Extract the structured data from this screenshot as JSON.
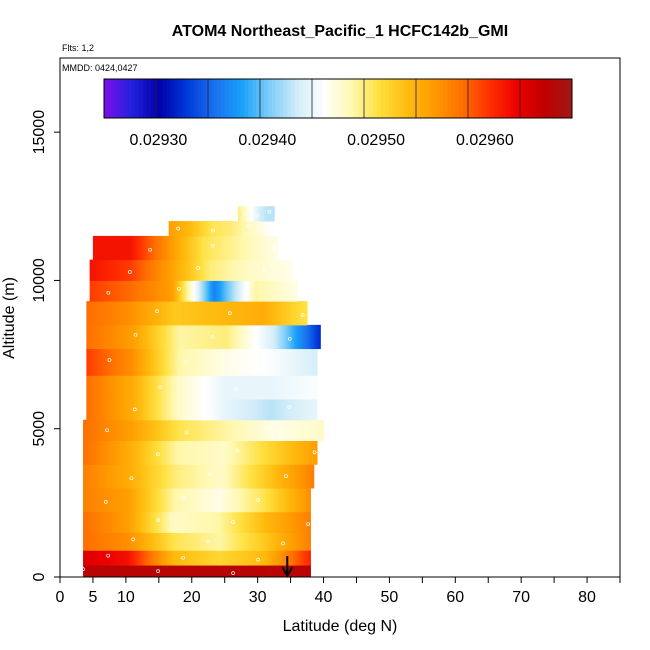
{
  "chart_data": {
    "type": "heatmap",
    "title": "ATOM4 Northeast_Pacific_1 HCFC142b_GMI",
    "flights_label": "Flts: 1,2",
    "dates_label": "MMDD: 0424,0427",
    "xlabel": "Latitude (deg N)",
    "ylabel": "Altitude (m)",
    "xlim": [
      0,
      85
    ],
    "ylim": [
      0,
      17500
    ],
    "xticks": [
      0,
      5,
      10,
      20,
      30,
      40,
      50,
      60,
      70,
      80
    ],
    "yticks": [
      0,
      5000,
      10000,
      15000
    ],
    "colorbar": {
      "min": 0.02925,
      "max": 0.02968,
      "ticks": [
        0.0293,
        0.0294,
        0.0295,
        0.0296
      ],
      "tick_labels": [
        "0.02930",
        "0.02940",
        "0.02950",
        "0.02960"
      ],
      "colors": [
        "#7d0fe8",
        "#2222dd",
        "#0000a8",
        "#0038d8",
        "#1a70f0",
        "#18a0f8",
        "#7cccf8",
        "#d0ecf8",
        "#ffffff",
        "#fff8b0",
        "#ffe040",
        "#ffbc10",
        "#ff9a00",
        "#ff7000",
        "#ff3000",
        "#ee0000",
        "#c00000",
        "#a01818"
      ]
    },
    "surface_arrow_latitude": 34.5,
    "rows": [
      {
        "alt_min": 0,
        "alt_max": 400,
        "lat_min": 3.5,
        "lat_max": 38,
        "values": [
          0.02966,
          0.02966,
          0.02966,
          0.02966,
          0.02966,
          0.02966
        ]
      },
      {
        "alt_min": 400,
        "alt_max": 900,
        "lat_min": 3.5,
        "lat_max": 38,
        "values": [
          0.02964,
          0.02962,
          0.02953,
          0.02951,
          0.02953,
          0.02961
        ]
      },
      {
        "alt_min": 900,
        "alt_max": 1500,
        "lat_min": 3.5,
        "lat_max": 38,
        "values": [
          0.02958,
          0.02956,
          0.0295,
          0.02948,
          0.02952,
          0.02957
        ]
      },
      {
        "alt_min": 1500,
        "alt_max": 2200,
        "lat_min": 3.5,
        "lat_max": 38,
        "values": [
          0.02958,
          0.02955,
          0.02947,
          0.02948,
          0.02953,
          0.02957
        ]
      },
      {
        "alt_min": 2200,
        "alt_max": 3000,
        "lat_min": 3.5,
        "lat_max": 38,
        "values": [
          0.02957,
          0.02955,
          0.02948,
          0.02946,
          0.0295,
          0.02956
        ]
      },
      {
        "alt_min": 3000,
        "alt_max": 3800,
        "lat_min": 3.5,
        "lat_max": 38.5,
        "values": [
          0.02957,
          0.02954,
          0.02949,
          0.02947,
          0.02952,
          0.02957
        ]
      },
      {
        "alt_min": 3800,
        "alt_max": 4600,
        "lat_min": 3.5,
        "lat_max": 39,
        "values": [
          0.02958,
          0.02954,
          0.02948,
          0.02947,
          0.02951,
          0.02955
        ]
      },
      {
        "alt_min": 4600,
        "alt_max": 5300,
        "lat_min": 3.5,
        "lat_max": 40,
        "values": [
          0.02958,
          0.02955,
          0.0295,
          0.02948,
          0.02946,
          0.02947
        ]
      },
      {
        "alt_min": 5300,
        "alt_max": 6000,
        "lat_min": 4,
        "lat_max": 39,
        "values": [
          0.02958,
          0.02954,
          0.02947,
          0.02944,
          0.02942,
          0.02944
        ]
      },
      {
        "alt_min": 6000,
        "alt_max": 6800,
        "lat_min": 4,
        "lat_max": 39,
        "values": [
          0.02958,
          0.02954,
          0.02947,
          0.02944,
          0.02944,
          0.02945
        ]
      },
      {
        "alt_min": 6800,
        "alt_max": 7700,
        "lat_min": 4,
        "lat_max": 39,
        "values": [
          0.0296,
          0.02956,
          0.02948,
          0.02946,
          0.02945,
          0.02943
        ]
      },
      {
        "alt_min": 7700,
        "alt_max": 8500,
        "lat_min": 4,
        "lat_max": 39.5,
        "values": [
          0.02958,
          0.02955,
          0.02948,
          0.02949,
          0.02943,
          0.02932
        ]
      },
      {
        "alt_min": 8500,
        "alt_max": 9300,
        "lat_min": 4,
        "lat_max": 37.5,
        "values": [
          0.02958,
          0.02956,
          0.02952,
          0.02953,
          0.02954,
          0.0295
        ]
      },
      {
        "alt_min": 9300,
        "alt_max": 10000,
        "lat_min": 4.5,
        "lat_max": 36,
        "values": [
          0.0296,
          0.02958,
          0.02955,
          0.02936,
          0.02948,
          0.02946
        ]
      },
      {
        "alt_min": 10000,
        "alt_max": 10700,
        "lat_min": 4.5,
        "lat_max": 35,
        "values": [
          0.02962,
          0.0296,
          0.02955,
          0.02949,
          0.02947,
          0.02946
        ]
      },
      {
        "alt_min": 10700,
        "alt_max": 11500,
        "lat_min": 5,
        "lat_max": 33,
        "values": [
          0.02962,
          0.02962,
          0.02956,
          0.0295,
          0.02948,
          0.02946
        ]
      },
      {
        "alt_min": 11500,
        "alt_max": 12000,
        "lat_min": 16.5,
        "lat_max": 32.5,
        "values": [
          0.02955,
          0.02953,
          0.0295,
          0.02949,
          0.02947,
          0.02945
        ]
      },
      {
        "alt_min": 12000,
        "alt_max": 12500,
        "lat_min": 27,
        "lat_max": 32.5,
        "values": [
          0.02949,
          0.02947,
          0.02945,
          0.02943,
          0.02942,
          0.02942
        ]
      }
    ]
  }
}
